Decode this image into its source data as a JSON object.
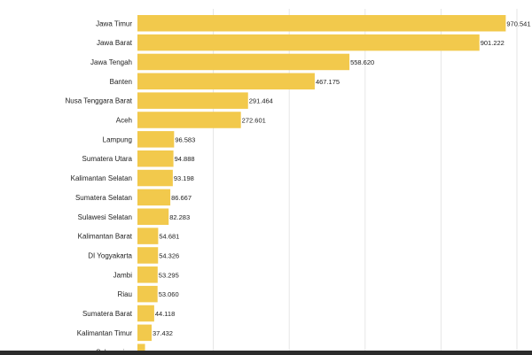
{
  "chart_data": {
    "type": "bar",
    "orientation": "horizontal",
    "title": "",
    "xlabel": "",
    "ylabel": "",
    "grid": true,
    "xlim": [
      0,
      1000
    ],
    "bar_color": "#f2c94c",
    "grid_color": "#e6e6e6",
    "label_color": "#222222",
    "categories": [
      "Jawa Timur",
      "Jawa Barat",
      "Jawa Tengah",
      "Banten",
      "Nusa Tenggara Barat",
      "Aceh",
      "Lampung",
      "Sumatera Utara",
      "Kalimantan Selatan",
      "Sumatera Selatan",
      "Sulawesi Selatan",
      "Kalimantan Barat",
      "DI Yogyakarta",
      "Jambi",
      "Riau",
      "Sumatera Barat",
      "Kalimantan Timur",
      "Sulawesi ..."
    ],
    "values": [
      970.541,
      901.222,
      558.62,
      467.175,
      291.464,
      272.601,
      96.583,
      94.888,
      93.198,
      86.667,
      82.283,
      54.681,
      54.326,
      53.295,
      53.06,
      44.118,
      37.432,
      20
    ],
    "value_labels": [
      "970.541",
      "901.222",
      "558.620",
      "467.175",
      "291.464",
      "272.601",
      "96.583",
      "94.888",
      "93.198",
      "86.667",
      "82.283",
      "54.681",
      "54.326",
      "53.295",
      "53.060",
      "44.118",
      "37.432",
      ""
    ]
  }
}
